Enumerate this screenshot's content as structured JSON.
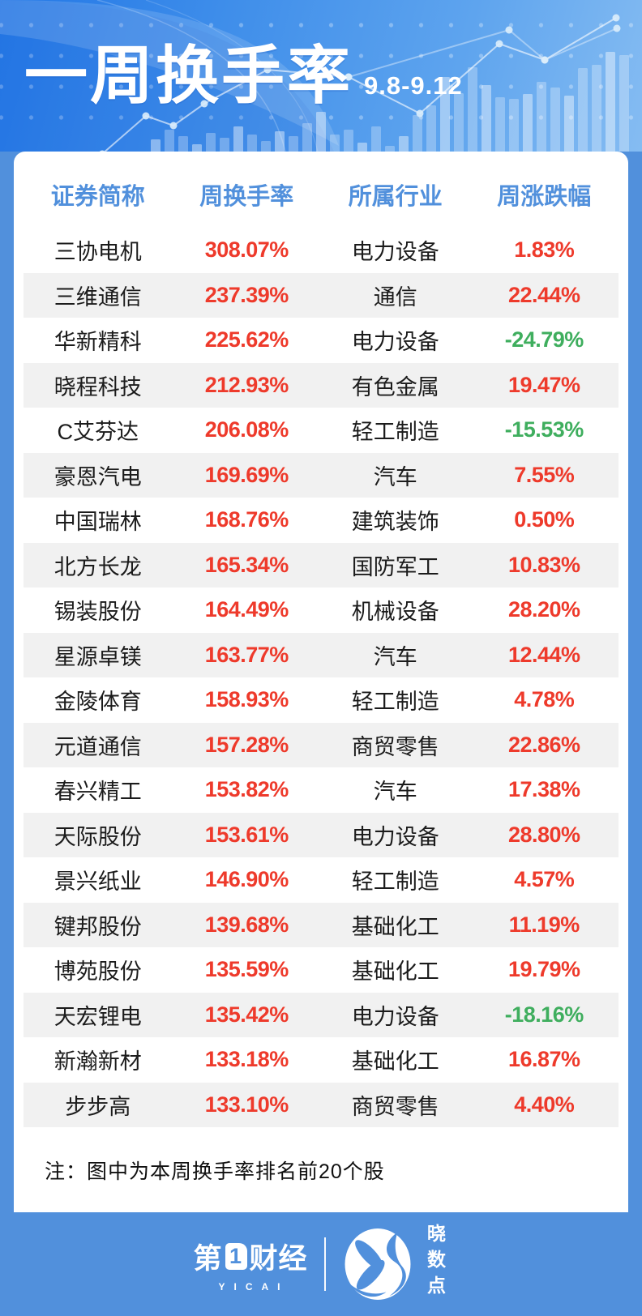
{
  "header": {
    "title": "一周换手率",
    "date_range": "9.8-9.12"
  },
  "chart_data": {
    "type": "table",
    "title": "一周换手率 9.8-9.12（本周换手率排名前20个股）",
    "columns": [
      "证券简称",
      "周换手率",
      "所属行业",
      "周涨跌幅"
    ],
    "rows": [
      {
        "name": "三协电机",
        "turnover": "308.07%",
        "industry": "电力设备",
        "change": "1.83%",
        "direction": "up"
      },
      {
        "name": "三维通信",
        "turnover": "237.39%",
        "industry": "通信",
        "change": "22.44%",
        "direction": "up"
      },
      {
        "name": "华新精科",
        "turnover": "225.62%",
        "industry": "电力设备",
        "change": "-24.79%",
        "direction": "down"
      },
      {
        "name": "晓程科技",
        "turnover": "212.93%",
        "industry": "有色金属",
        "change": "19.47%",
        "direction": "up"
      },
      {
        "name": "C艾芬达",
        "turnover": "206.08%",
        "industry": "轻工制造",
        "change": "-15.53%",
        "direction": "down"
      },
      {
        "name": "豪恩汽电",
        "turnover": "169.69%",
        "industry": "汽车",
        "change": "7.55%",
        "direction": "up"
      },
      {
        "name": "中国瑞林",
        "turnover": "168.76%",
        "industry": "建筑装饰",
        "change": "0.50%",
        "direction": "up"
      },
      {
        "name": "北方长龙",
        "turnover": "165.34%",
        "industry": "国防军工",
        "change": "10.83%",
        "direction": "up"
      },
      {
        "name": "锡装股份",
        "turnover": "164.49%",
        "industry": "机械设备",
        "change": "28.20%",
        "direction": "up"
      },
      {
        "name": "星源卓镁",
        "turnover": "163.77%",
        "industry": "汽车",
        "change": "12.44%",
        "direction": "up"
      },
      {
        "name": "金陵体育",
        "turnover": "158.93%",
        "industry": "轻工制造",
        "change": "4.78%",
        "direction": "up"
      },
      {
        "name": "元道通信",
        "turnover": "157.28%",
        "industry": "商贸零售",
        "change": "22.86%",
        "direction": "up"
      },
      {
        "name": "春兴精工",
        "turnover": "153.82%",
        "industry": "汽车",
        "change": "17.38%",
        "direction": "up"
      },
      {
        "name": "天际股份",
        "turnover": "153.61%",
        "industry": "电力设备",
        "change": "28.80%",
        "direction": "up"
      },
      {
        "name": "景兴纸业",
        "turnover": "146.90%",
        "industry": "轻工制造",
        "change": "4.57%",
        "direction": "up"
      },
      {
        "name": "键邦股份",
        "turnover": "139.68%",
        "industry": "基础化工",
        "change": "11.19%",
        "direction": "up"
      },
      {
        "name": "博苑股份",
        "turnover": "135.59%",
        "industry": "基础化工",
        "change": "19.79%",
        "direction": "up"
      },
      {
        "name": "天宏锂电",
        "turnover": "135.42%",
        "industry": "电力设备",
        "change": "-18.16%",
        "direction": "down"
      },
      {
        "name": "新瀚新材",
        "turnover": "133.18%",
        "industry": "基础化工",
        "change": "16.87%",
        "direction": "up"
      },
      {
        "name": "步步高",
        "turnover": "133.10%",
        "industry": "商贸零售",
        "change": "4.40%",
        "direction": "up"
      }
    ]
  },
  "note": "注：图中为本周换手率排名前20个股",
  "footer": {
    "brand_left_pre": "第",
    "brand_left_digit": "1",
    "brand_left_post": "财经",
    "brand_left_sub": "YICAI",
    "brand_right": "晓数点",
    "icon": "xs-monogram-icon"
  },
  "colors": {
    "accent_blue": "#5190dc",
    "up_red": "#ee3a2b",
    "down_green": "#3fae5e",
    "stripe_gray": "#f1f1f1"
  }
}
